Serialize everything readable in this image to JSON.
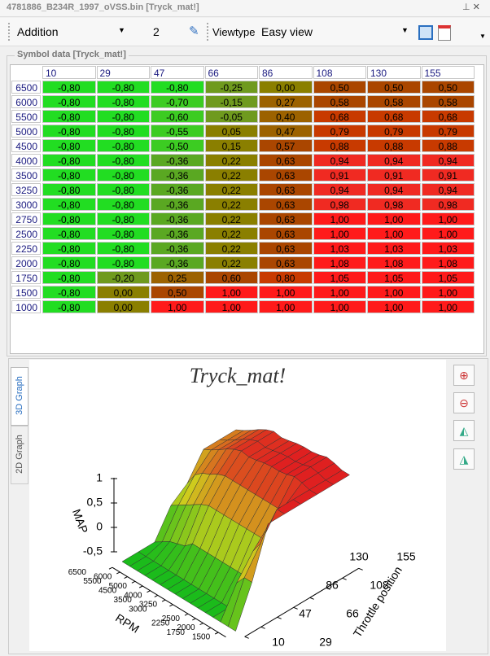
{
  "window_title": "4781886_B234R_1997_oVSS.bin [Tryck_mat!]",
  "toolbar": {
    "mode": "Addition",
    "value": "2",
    "viewtype_label": "Viewtype",
    "viewtype": "Easy view"
  },
  "group_title": "Symbol data [Tryck_mat!]",
  "table": {
    "columns": [
      "10",
      "29",
      "47",
      "66",
      "86",
      "108",
      "130",
      "155"
    ],
    "rows": [
      {
        "label": "6500",
        "cells": [
          "-0,80",
          "-0,80",
          "-0,80",
          "-0,25",
          "0,00",
          "0,50",
          "0,50",
          "0,50"
        ]
      },
      {
        "label": "6000",
        "cells": [
          "-0,80",
          "-0,80",
          "-0,70",
          "-0,15",
          "0,27",
          "0,58",
          "0,58",
          "0,58"
        ]
      },
      {
        "label": "5500",
        "cells": [
          "-0,80",
          "-0,80",
          "-0,60",
          "-0,05",
          "0,40",
          "0,68",
          "0,68",
          "0,68"
        ]
      },
      {
        "label": "5000",
        "cells": [
          "-0,80",
          "-0,80",
          "-0,55",
          "0,05",
          "0,47",
          "0,79",
          "0,79",
          "0,79"
        ]
      },
      {
        "label": "4500",
        "cells": [
          "-0,80",
          "-0,80",
          "-0,50",
          "0,15",
          "0,57",
          "0,88",
          "0,88",
          "0,88"
        ]
      },
      {
        "label": "4000",
        "cells": [
          "-0,80",
          "-0,80",
          "-0,36",
          "0,22",
          "0,63",
          "0,94",
          "0,94",
          "0,94"
        ]
      },
      {
        "label": "3500",
        "cells": [
          "-0,80",
          "-0,80",
          "-0,36",
          "0,22",
          "0,63",
          "0,91",
          "0,91",
          "0,91"
        ]
      },
      {
        "label": "3250",
        "cells": [
          "-0,80",
          "-0,80",
          "-0,36",
          "0,22",
          "0,63",
          "0,94",
          "0,94",
          "0,94"
        ]
      },
      {
        "label": "3000",
        "cells": [
          "-0,80",
          "-0,80",
          "-0,36",
          "0,22",
          "0,63",
          "0,98",
          "0,98",
          "0,98"
        ]
      },
      {
        "label": "2750",
        "cells": [
          "-0,80",
          "-0,80",
          "-0,36",
          "0,22",
          "0,63",
          "1,00",
          "1,00",
          "1,00"
        ]
      },
      {
        "label": "2500",
        "cells": [
          "-0,80",
          "-0,80",
          "-0,36",
          "0,22",
          "0,63",
          "1,00",
          "1,00",
          "1,00"
        ]
      },
      {
        "label": "2250",
        "cells": [
          "-0,80",
          "-0,80",
          "-0,36",
          "0,22",
          "0,63",
          "1,03",
          "1,03",
          "1,03"
        ]
      },
      {
        "label": "2000",
        "cells": [
          "-0,80",
          "-0,80",
          "-0,36",
          "0,22",
          "0,63",
          "1,08",
          "1,08",
          "1,08"
        ]
      },
      {
        "label": "1750",
        "cells": [
          "-0,80",
          "-0,20",
          "0,25",
          "0,60",
          "0,80",
          "1,05",
          "1,05",
          "1,05"
        ]
      },
      {
        "label": "1500",
        "cells": [
          "-0,80",
          "0,00",
          "0,50",
          "1,00",
          "1,00",
          "1,00",
          "1,00",
          "1,00"
        ]
      },
      {
        "label": "1000",
        "cells": [
          "-0,80",
          "0,00",
          "1,00",
          "1,00",
          "1,00",
          "1,00",
          "1,00",
          "1,00"
        ]
      }
    ]
  },
  "graph": {
    "tabs": [
      "3D Graph",
      "2D Graph"
    ],
    "title": "Tryck_mat!",
    "z_label": "MAP",
    "z_ticks": [
      1,
      {
        "value": 0.5,
        "label": "0,5"
      },
      0,
      {
        "value": -0.5,
        "label": "-0,5"
      }
    ],
    "x_label": "RPM",
    "x_ticks": [
      6500,
      6000,
      5500,
      5000,
      4500,
      4000,
      3500,
      3250,
      3000,
      2500,
      2250,
      2000,
      1750,
      1500
    ],
    "y_label": "Throttle position",
    "y_ticks": [
      10,
      29,
      47,
      66,
      86,
      108,
      130,
      155
    ]
  }
}
